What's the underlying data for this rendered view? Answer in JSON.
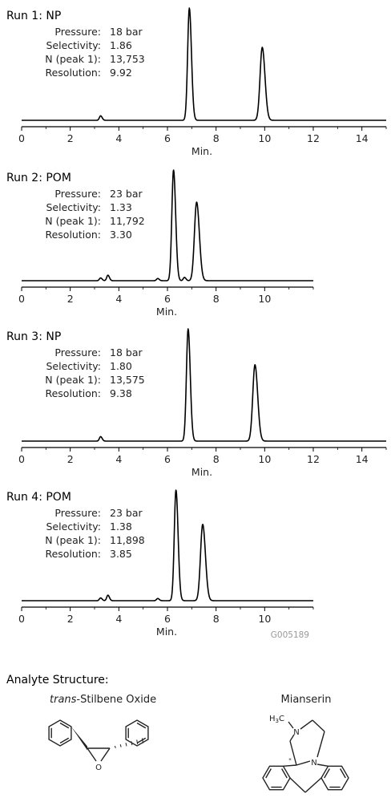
{
  "chart_data": [
    {
      "type": "line",
      "title": "Run 1: NP",
      "xlabel": "Min.",
      "xlim": [
        0,
        15
      ],
      "xticks": [
        0,
        2,
        4,
        6,
        8,
        10,
        12,
        14
      ],
      "info": [
        {
          "label": "Pressure:",
          "value": "18 bar"
        },
        {
          "label": "Selectivity:",
          "value": "1.86"
        },
        {
          "label": "N (peak 1):",
          "value": "13,753"
        },
        {
          "label": "Resolution:",
          "value": "9.92"
        }
      ],
      "peaks": [
        {
          "x": 3.25,
          "y": 0.04,
          "w": 0.05
        },
        {
          "x": 6.9,
          "y": 1.0,
          "w": 0.07
        },
        {
          "x": 9.9,
          "y": 0.65,
          "w": 0.09
        }
      ]
    },
    {
      "type": "line",
      "title": "Run 2: POM",
      "xlabel": "Min.",
      "xlim": [
        0,
        12
      ],
      "xticks": [
        0,
        2,
        4,
        6,
        8,
        10
      ],
      "info": [
        {
          "label": "Pressure:",
          "value": "23 bar"
        },
        {
          "label": "Selectivity:",
          "value": "1.33"
        },
        {
          "label": "N (peak 1):",
          "value": "11,792"
        },
        {
          "label": "Resolution:",
          "value": "3.30"
        }
      ],
      "peaks": [
        {
          "x": 3.25,
          "y": 0.025,
          "w": 0.05
        },
        {
          "x": 3.55,
          "y": 0.05,
          "w": 0.05
        },
        {
          "x": 5.6,
          "y": 0.02,
          "w": 0.05
        },
        {
          "x": 6.25,
          "y": 1.0,
          "w": 0.07
        },
        {
          "x": 6.7,
          "y": 0.03,
          "w": 0.05
        },
        {
          "x": 7.2,
          "y": 0.71,
          "w": 0.09
        }
      ]
    },
    {
      "type": "line",
      "title": "Run 3: NP",
      "xlabel": "Min.",
      "xlim": [
        0,
        15
      ],
      "xticks": [
        0,
        2,
        4,
        6,
        8,
        10,
        12,
        14
      ],
      "info": [
        {
          "label": "Pressure:",
          "value": "18 bar"
        },
        {
          "label": "Selectivity:",
          "value": "1.80"
        },
        {
          "label": "N (peak 1):",
          "value": "13,575"
        },
        {
          "label": "Resolution:",
          "value": "9.38"
        }
      ],
      "peaks": [
        {
          "x": 3.25,
          "y": 0.04,
          "w": 0.05
        },
        {
          "x": 6.85,
          "y": 1.0,
          "w": 0.07
        },
        {
          "x": 9.6,
          "y": 0.68,
          "w": 0.09
        }
      ]
    },
    {
      "type": "line",
      "title": "Run 4: POM",
      "xlabel": "Min.",
      "xlim": [
        0,
        12
      ],
      "xticks": [
        0,
        2,
        4,
        6,
        8,
        10
      ],
      "info": [
        {
          "label": "Pressure:",
          "value": "23 bar"
        },
        {
          "label": "Selectivity:",
          "value": "1.38"
        },
        {
          "label": "N (peak 1):",
          "value": "11,898"
        },
        {
          "label": "Resolution:",
          "value": "3.85"
        }
      ],
      "peaks": [
        {
          "x": 3.25,
          "y": 0.025,
          "w": 0.05
        },
        {
          "x": 3.55,
          "y": 0.05,
          "w": 0.05
        },
        {
          "x": 5.6,
          "y": 0.02,
          "w": 0.05
        },
        {
          "x": 6.35,
          "y": 1.0,
          "w": 0.07
        },
        {
          "x": 7.45,
          "y": 0.69,
          "w": 0.09
        }
      ]
    }
  ],
  "figure_code": "G005189",
  "structures": {
    "heading": "Analyte Structure:",
    "compound1": {
      "name_italic": "trans",
      "name_rest": "-Stilbene Oxide",
      "atom_o": "O"
    },
    "compound2": {
      "name": "Mianserin",
      "atom_h3c": "H",
      "atom_h3c_sub": "3",
      "atom_c": "C",
      "atom_n1": "N",
      "atom_n2": "N",
      "stereo_mark": "*"
    }
  }
}
